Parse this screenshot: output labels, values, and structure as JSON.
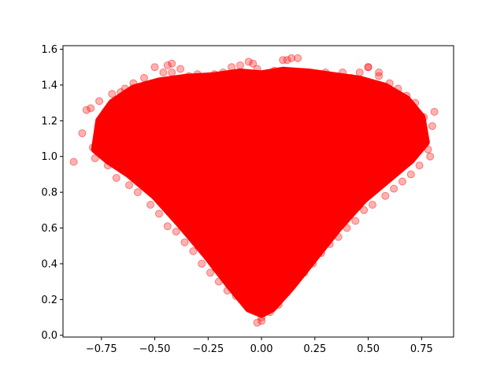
{
  "chart_data": {
    "type": "scatter",
    "title": "",
    "xlabel": "",
    "ylabel": "",
    "xlim": [
      -0.93,
      0.9
    ],
    "ylim": [
      -0.01,
      1.62
    ],
    "grid": false,
    "x_ticks": [
      -0.75,
      -0.5,
      -0.25,
      0.0,
      0.25,
      0.5,
      0.75
    ],
    "x_tick_labels": [
      "−0.75",
      "−0.50",
      "−0.25",
      "0.00",
      "0.25",
      "0.50",
      "0.75"
    ],
    "y_ticks": [
      0.0,
      0.2,
      0.4,
      0.6,
      0.8,
      1.0,
      1.2,
      1.4,
      1.6
    ],
    "y_tick_labels": [
      "0.0",
      "0.2",
      "0.4",
      "0.6",
      "0.8",
      "1.0",
      "1.2",
      "1.4",
      "1.6"
    ],
    "marker_color": "#ff0000",
    "marker_alpha": 0.3,
    "series": [
      {
        "shape": "heart-shaped dense cloud",
        "x": [
          -0.88,
          -0.82,
          -0.8,
          -0.78,
          -0.76,
          -0.74,
          -0.72,
          -0.7,
          -0.68,
          -0.66,
          -0.64,
          -0.62,
          -0.6,
          -0.58,
          -0.55,
          -0.52,
          -0.5,
          -0.48,
          -0.46,
          -0.44,
          -0.42,
          -0.4,
          -0.38,
          -0.36,
          -0.34,
          -0.32,
          -0.3,
          -0.28,
          -0.26,
          -0.24,
          -0.22,
          -0.2,
          -0.18,
          -0.16,
          -0.14,
          -0.12,
          -0.1,
          -0.08,
          -0.06,
          -0.04,
          -0.02,
          0.0,
          0.02,
          0.04,
          0.06,
          0.08,
          0.1,
          0.12,
          0.14,
          0.16,
          0.18,
          0.2,
          0.22,
          0.24,
          0.26,
          0.28,
          0.3,
          0.32,
          0.34,
          0.36,
          0.38,
          0.4,
          0.42,
          0.44,
          0.46,
          0.48,
          0.5,
          0.52,
          0.55,
          0.58,
          0.6,
          0.62,
          0.64,
          0.66,
          0.68,
          0.7,
          0.72,
          0.74,
          0.76,
          0.78,
          0.8,
          -0.84,
          -0.79,
          0.81,
          0.79,
          -0.44,
          -0.42,
          0.12,
          0.17,
          0.5,
          0.55,
          -0.02,
          -0.04,
          0.0
        ],
        "y": [
          0.97,
          1.26,
          1.27,
          0.99,
          1.31,
          1.21,
          0.95,
          1.35,
          0.88,
          1.36,
          1.38,
          0.84,
          1.41,
          0.8,
          1.44,
          0.73,
          1.5,
          0.68,
          1.47,
          0.61,
          1.47,
          0.58,
          1.49,
          0.52,
          1.45,
          0.47,
          1.46,
          0.4,
          1.44,
          0.35,
          1.46,
          0.3,
          1.47,
          0.25,
          1.5,
          0.22,
          1.51,
          0.18,
          1.53,
          0.14,
          1.49,
          0.08,
          1.46,
          0.13,
          1.48,
          0.17,
          1.54,
          0.24,
          1.55,
          0.3,
          1.47,
          0.35,
          1.46,
          0.4,
          1.45,
          0.46,
          1.47,
          0.51,
          1.44,
          0.55,
          1.47,
          0.6,
          1.44,
          0.64,
          1.47,
          0.7,
          1.5,
          0.73,
          1.45,
          0.78,
          1.41,
          0.82,
          1.38,
          0.86,
          1.34,
          0.9,
          1.3,
          0.95,
          1.22,
          1.04,
          1.17,
          1.13,
          1.05,
          1.25,
          1.0,
          1.51,
          1.52,
          1.54,
          1.55,
          1.5,
          1.47,
          0.07,
          1.52,
          0.1
        ]
      }
    ]
  }
}
